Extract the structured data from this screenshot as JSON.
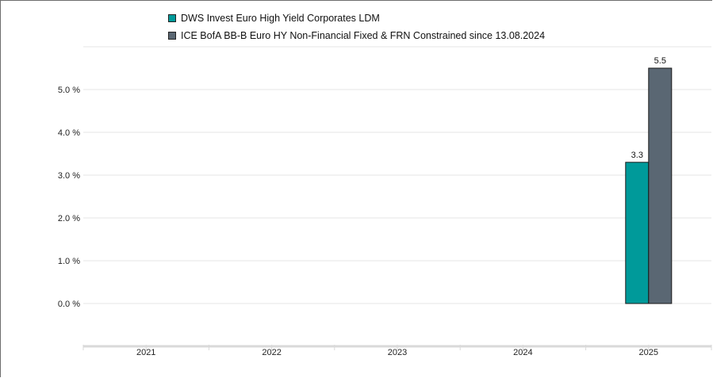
{
  "chart_data": {
    "type": "bar",
    "categories": [
      "2021",
      "2022",
      "2023",
      "2024",
      "2025"
    ],
    "series": [
      {
        "name": "DWS Invest Euro High Yield Corporates LDM",
        "color": "#009a9a",
        "values": [
          null,
          null,
          null,
          null,
          3.3
        ],
        "data_labels": [
          "",
          "",
          "",
          "",
          "3.3"
        ]
      },
      {
        "name": "ICE BofA BB-B Euro HY Non-Financial Fixed & FRN Constrained since 13.08.2024",
        "color": "#5a6773",
        "values": [
          null,
          null,
          null,
          null,
          5.5
        ],
        "data_labels": [
          "",
          "",
          "",
          "",
          "5.5"
        ]
      }
    ],
    "y_ticks": [
      "0.0 %",
      "1.0 %",
      "2.0 %",
      "3.0 %",
      "4.0 %",
      "5.0 %"
    ],
    "ylim": [
      -1,
      6
    ],
    "grid": true,
    "legend_position": "top"
  }
}
